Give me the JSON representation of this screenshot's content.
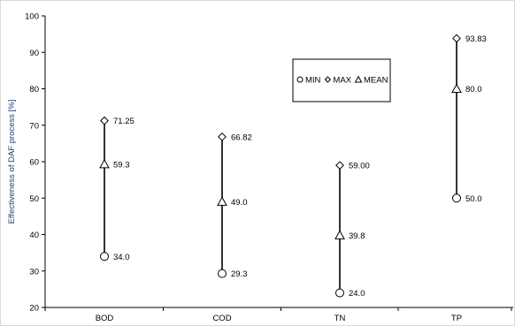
{
  "chart_data": {
    "type": "scatter",
    "title": "",
    "xlabel": "",
    "ylabel": "Effectiveness of DAF process [%]",
    "ylim": [
      20,
      100
    ],
    "yticks": [
      20,
      30,
      40,
      50,
      60,
      70,
      80,
      90,
      100
    ],
    "categories": [
      "BOD",
      "COD",
      "TN",
      "TP"
    ],
    "grid": false,
    "legend_position": "top-right",
    "series": [
      {
        "name": "MIN",
        "marker": "circle",
        "values": [
          34.0,
          29.3,
          24.0,
          50.0
        ],
        "labels": [
          "34.0",
          "29.3",
          "24.0",
          "50.0"
        ]
      },
      {
        "name": "MAX",
        "marker": "diamond",
        "values": [
          71.25,
          66.82,
          59.0,
          93.83
        ],
        "labels": [
          "71.25",
          "66.82",
          "59.00",
          "93.83"
        ]
      },
      {
        "name": "MEAN",
        "marker": "triangle",
        "values": [
          59.3,
          49.0,
          39.8,
          80.0
        ],
        "labels": [
          "59.3",
          "49.0",
          "39.8",
          "80.0"
        ]
      }
    ],
    "colors": {
      "marker": "#000000",
      "axis_title": "#1f3b70",
      "frame": "#d0d0d0"
    }
  }
}
